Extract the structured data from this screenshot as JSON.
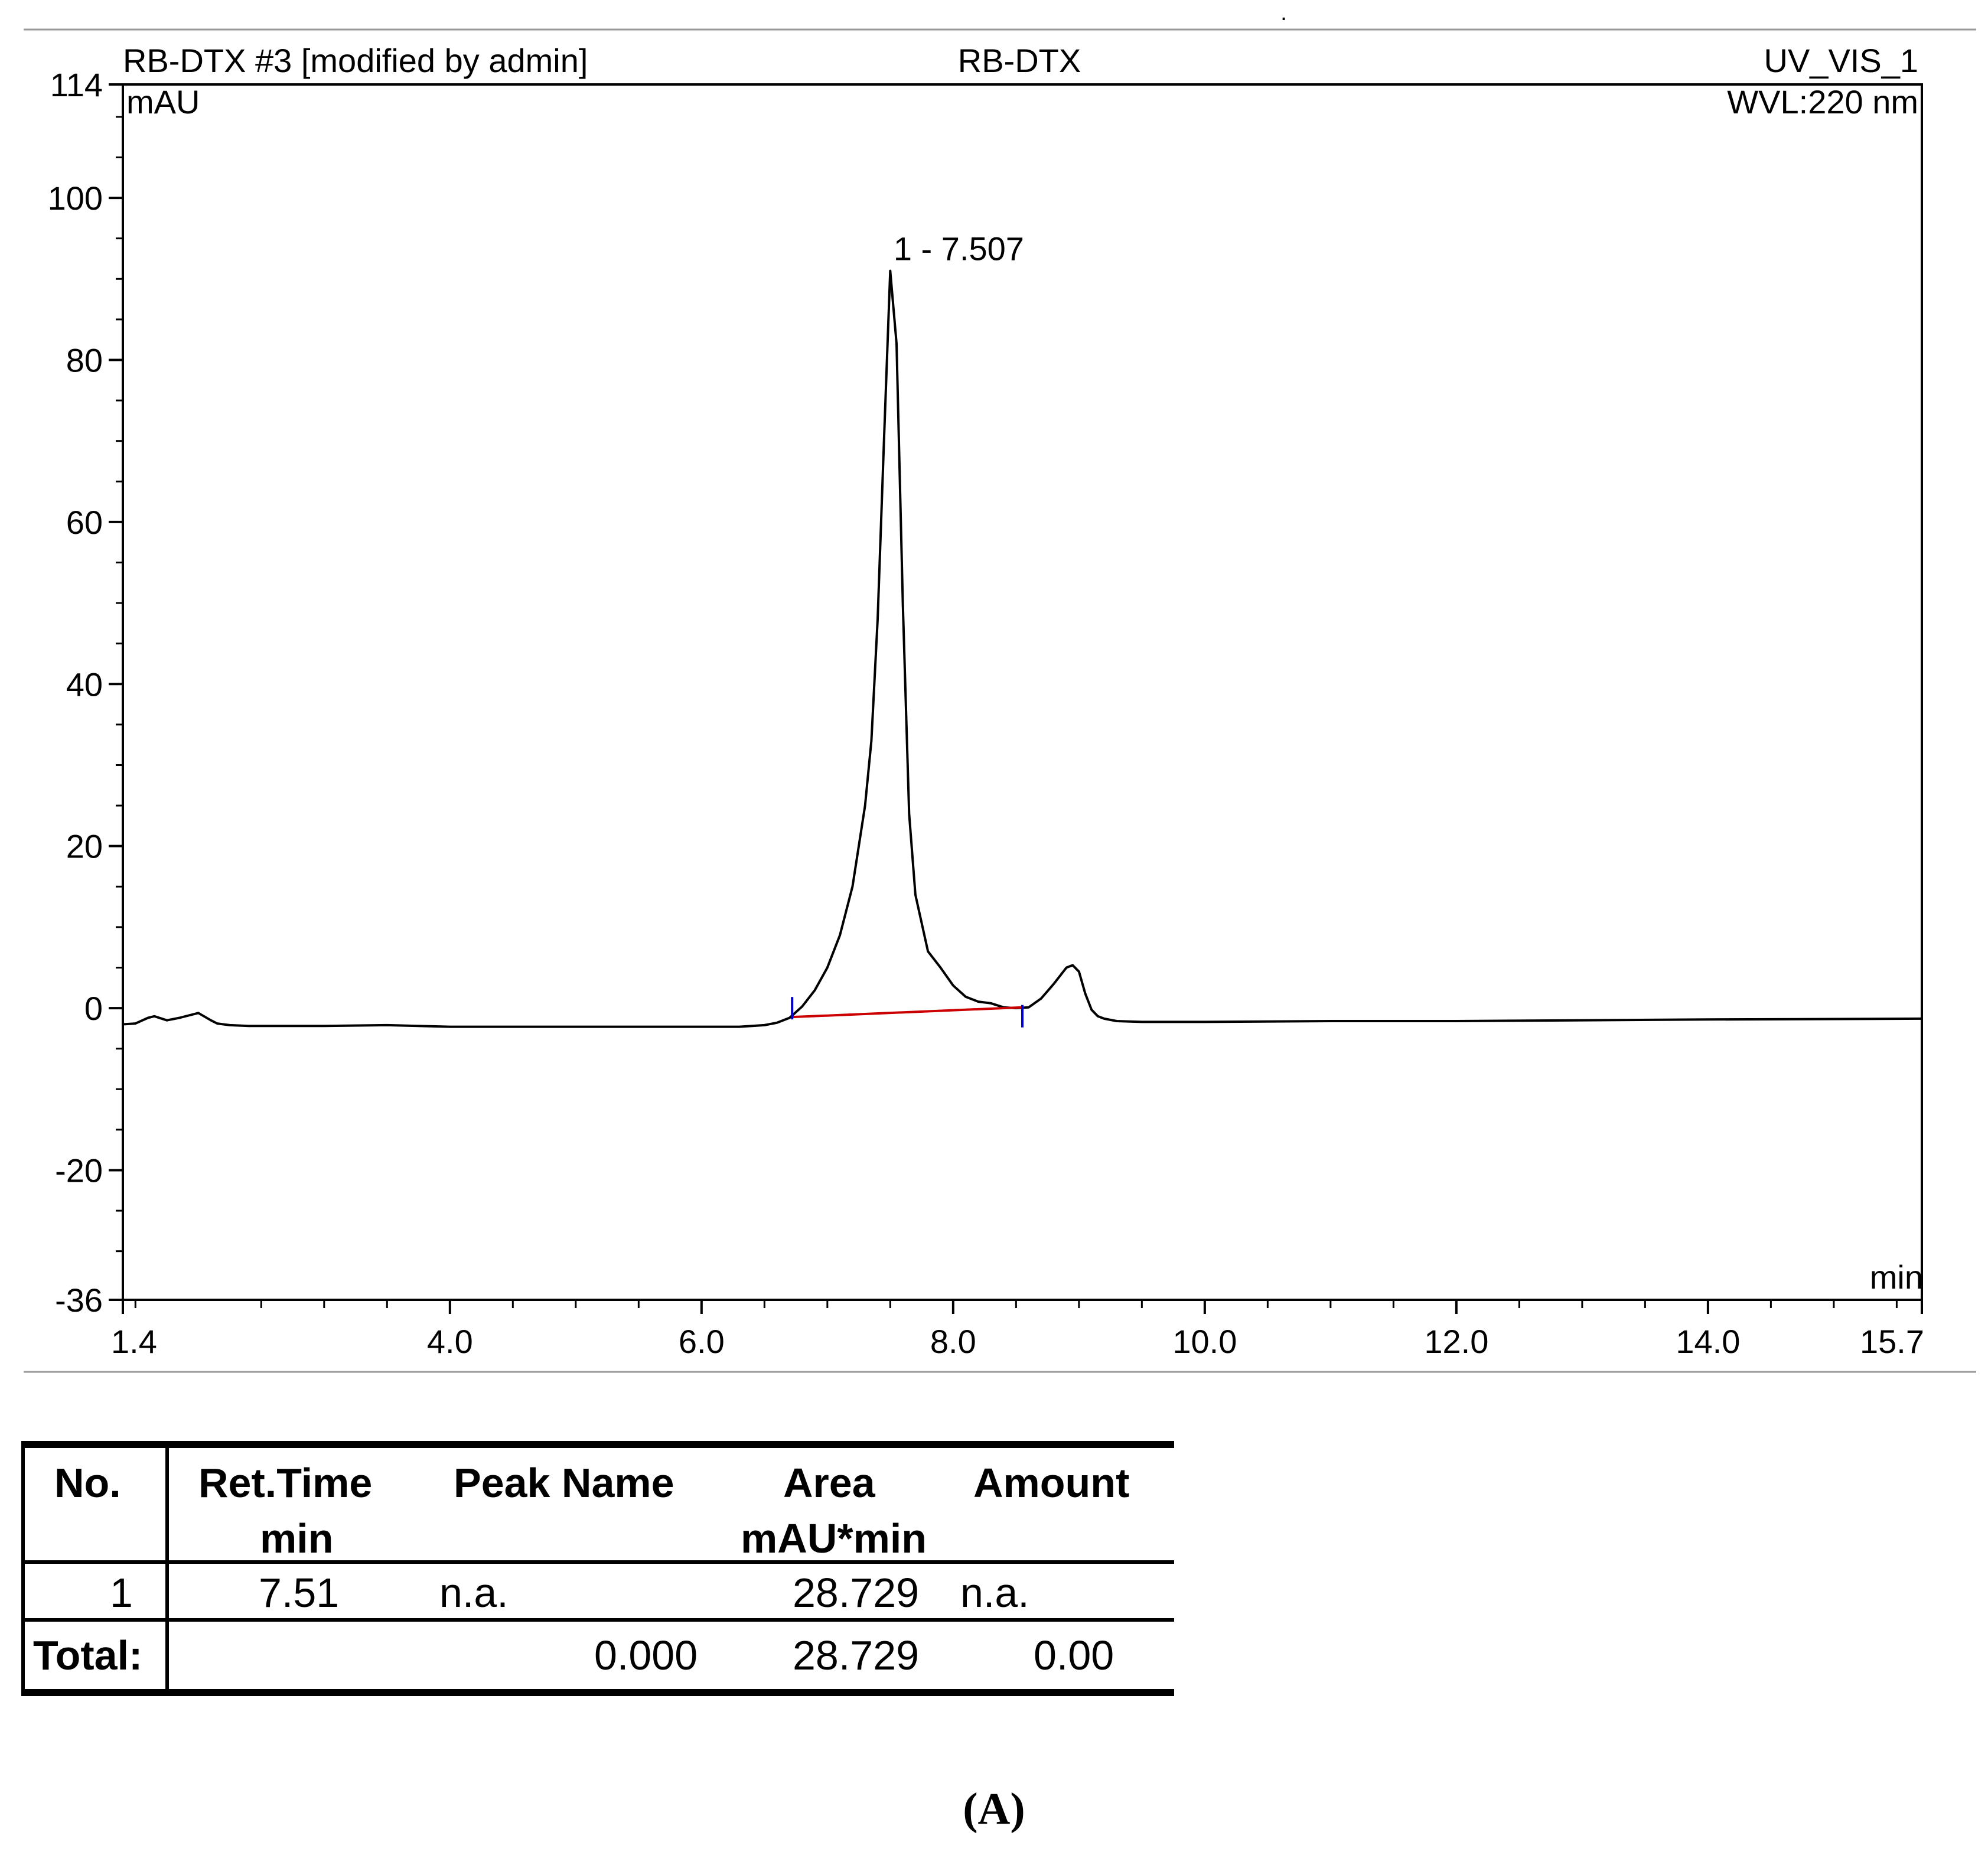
{
  "header": {
    "left": "RB-DTX #3 [modified by admin]",
    "center": "RB-DTX",
    "right": "UV_VIS_1",
    "wavelength": "WVL:220 nm"
  },
  "chart_data": {
    "type": "line",
    "title": "RB-DTX",
    "xlabel": "min",
    "ylabel": "mAU",
    "xlim": [
      1.4,
      15.7
    ],
    "ylim": [
      -36,
      114
    ],
    "x_ticks": [
      "1.4",
      "4.0",
      "6.0",
      "8.0",
      "10.0",
      "12.0",
      "14.0",
      "15.7"
    ],
    "y_ticks": [
      "114",
      "100",
      "80",
      "60",
      "40",
      "20",
      "0",
      "-20",
      "-36"
    ],
    "grid": false,
    "series": [
      {
        "color": "#000000",
        "x": [
          1.4,
          1.5,
          1.6,
          1.65,
          1.75,
          1.85,
          2.0,
          2.1,
          2.15,
          2.25,
          2.4,
          3.0,
          3.5,
          4.0,
          5.0,
          6.0,
          6.3,
          6.5,
          6.6,
          6.7,
          6.8,
          6.9,
          7.0,
          7.1,
          7.2,
          7.3,
          7.35,
          7.4,
          7.45,
          7.5,
          7.55,
          7.6,
          7.65,
          7.7,
          7.8,
          7.9,
          8.0,
          8.1,
          8.2,
          8.3,
          8.4,
          8.5,
          8.6,
          8.7,
          8.8,
          8.9,
          8.95,
          9.0,
          9.05,
          9.1,
          9.15,
          9.2,
          9.3,
          9.5,
          10.0,
          11.0,
          12.0,
          14.0,
          15.7
        ],
        "y": [
          -2.0,
          -1.9,
          -1.2,
          -1.0,
          -1.5,
          -1.2,
          -0.6,
          -1.5,
          -1.9,
          -2.1,
          -2.2,
          -2.2,
          -2.1,
          -2.3,
          -2.3,
          -2.3,
          -2.3,
          -2.1,
          -1.8,
          -1.2,
          0.2,
          2.2,
          5.0,
          9.0,
          15.0,
          25.0,
          33.0,
          48.0,
          70.0,
          91.0,
          82.0,
          50.0,
          24.0,
          14.0,
          7.0,
          5.0,
          2.8,
          1.4,
          0.8,
          0.6,
          0.1,
          0.0,
          0.1,
          1.2,
          3.0,
          5.0,
          5.3,
          4.5,
          1.8,
          -0.2,
          -1.0,
          -1.3,
          -1.6,
          -1.7,
          -1.7,
          -1.6,
          -1.6,
          -1.4,
          -1.3
        ]
      }
    ],
    "peaks": [
      {
        "label": "1 - 7.507",
        "x": 7.507,
        "y": 91.0
      }
    ],
    "integration_baseline": {
      "color": "#cc0000",
      "delimiter_color": "#0000cc",
      "start": {
        "x": 6.72,
        "y": -1.1
      },
      "end": {
        "x": 8.55,
        "y": 0.1
      }
    }
  },
  "table": {
    "headers": [
      {
        "line1": "No.",
        "line2": ""
      },
      {
        "line1": "Ret.Time",
        "line2": "min"
      },
      {
        "line1": "Peak Name",
        "line2": ""
      },
      {
        "line1": "Area",
        "line2": "mAU*min"
      },
      {
        "line1": "Amount",
        "line2": ""
      }
    ],
    "rows": [
      [
        "1",
        "7.51",
        "n.a.",
        "28.729",
        "n.a."
      ]
    ],
    "total": {
      "label": "Total:",
      "peak_name": "0.000",
      "area": "28.729",
      "amount": "0.00"
    }
  },
  "caption": "(A)"
}
